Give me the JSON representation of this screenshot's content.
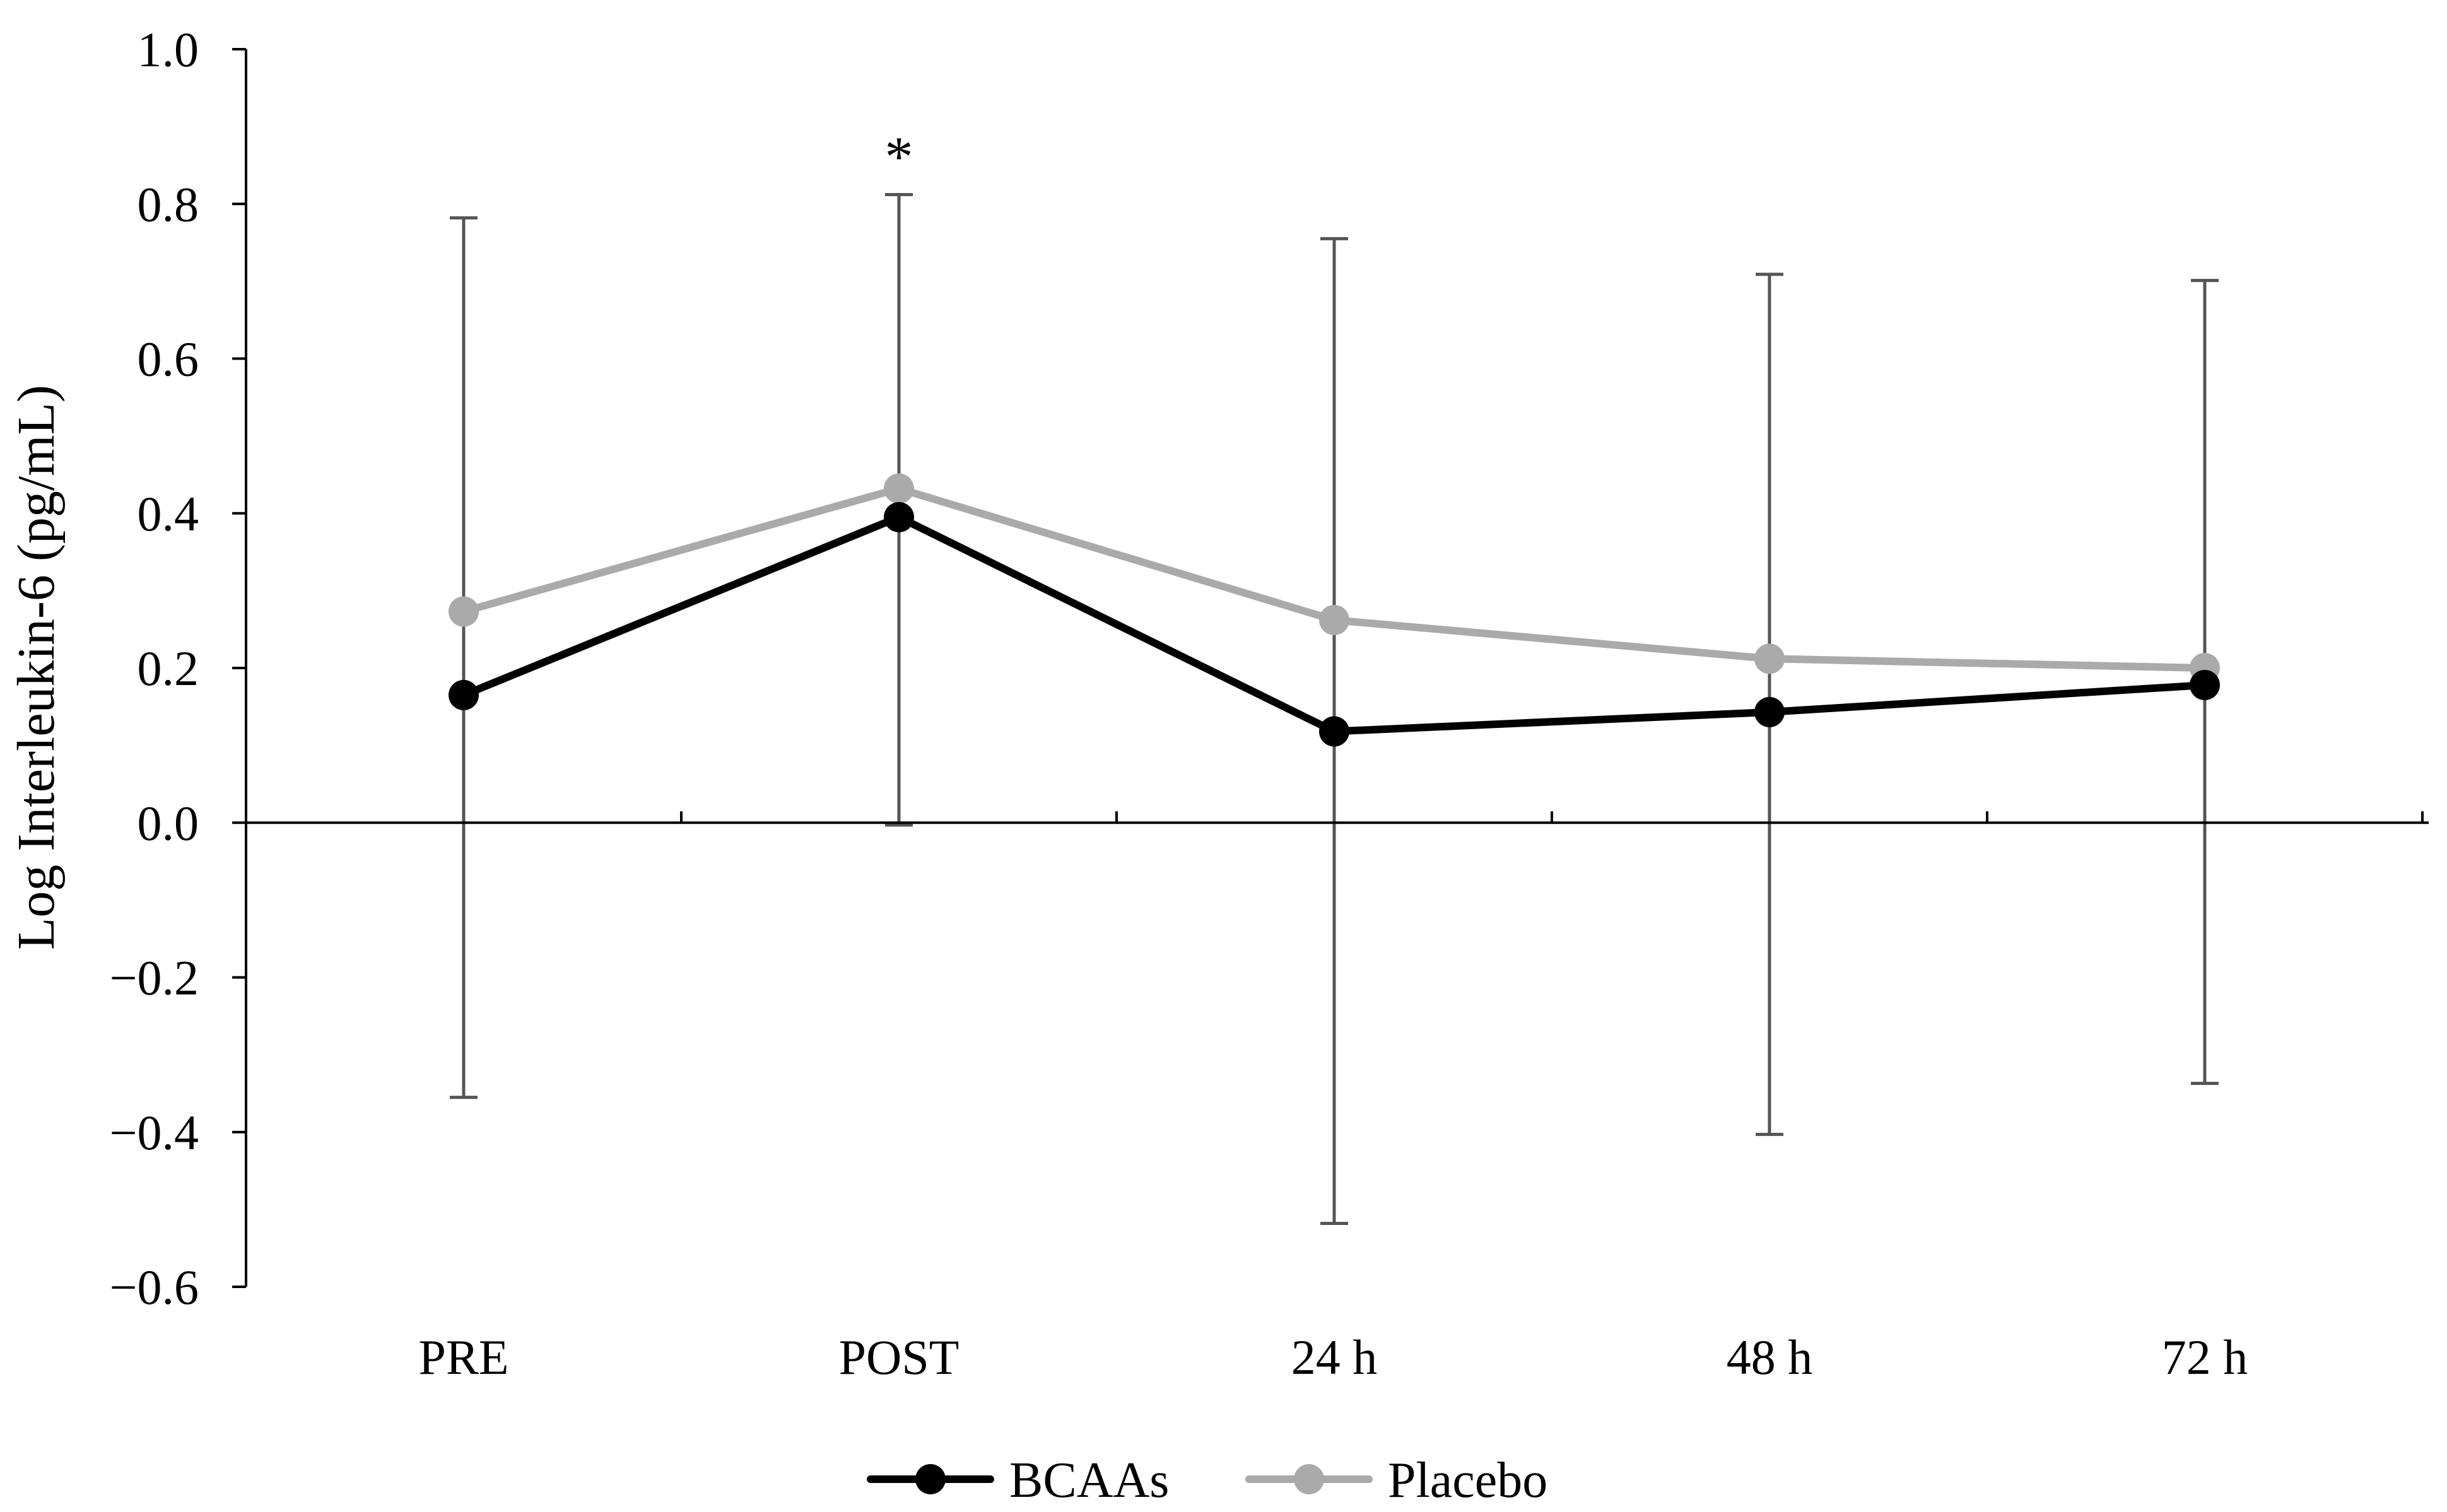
{
  "chart_data": {
    "type": "line",
    "title": "",
    "xlabel": "",
    "ylabel": "Log Interleukin-6 (pg/mL)",
    "categories": [
      "PRE",
      "POST",
      "24 h",
      "48 h",
      "72 h"
    ],
    "ylim": [
      -0.6,
      1.0
    ],
    "yticks": [
      -0.6,
      -0.4,
      -0.2,
      0.0,
      0.2,
      0.4,
      0.6,
      0.8,
      1.0
    ],
    "ytick_labels": [
      "−0.6",
      "−0.4",
      "−0.2",
      "0.0",
      "0.2",
      "0.4",
      "0.6",
      "0.8",
      "1.0"
    ],
    "grid": false,
    "legend_position": "bottom-center",
    "series": [
      {
        "name": "BCAAs",
        "color": "#000000",
        "values": [
          0.165,
          0.395,
          0.118,
          0.143,
          0.178
        ]
      },
      {
        "name": "Placebo",
        "color": "#aaaaaa",
        "values": [
          0.273,
          0.432,
          0.262,
          0.212,
          0.2
        ]
      }
    ],
    "error_bars": {
      "color": "#555555",
      "lower": [
        -0.355,
        -0.003,
        -0.518,
        -0.403,
        -0.337
      ],
      "upper": [
        0.782,
        0.812,
        0.755,
        0.709,
        0.701
      ]
    },
    "annotations": [
      {
        "category": "POST",
        "text": "*"
      }
    ]
  }
}
